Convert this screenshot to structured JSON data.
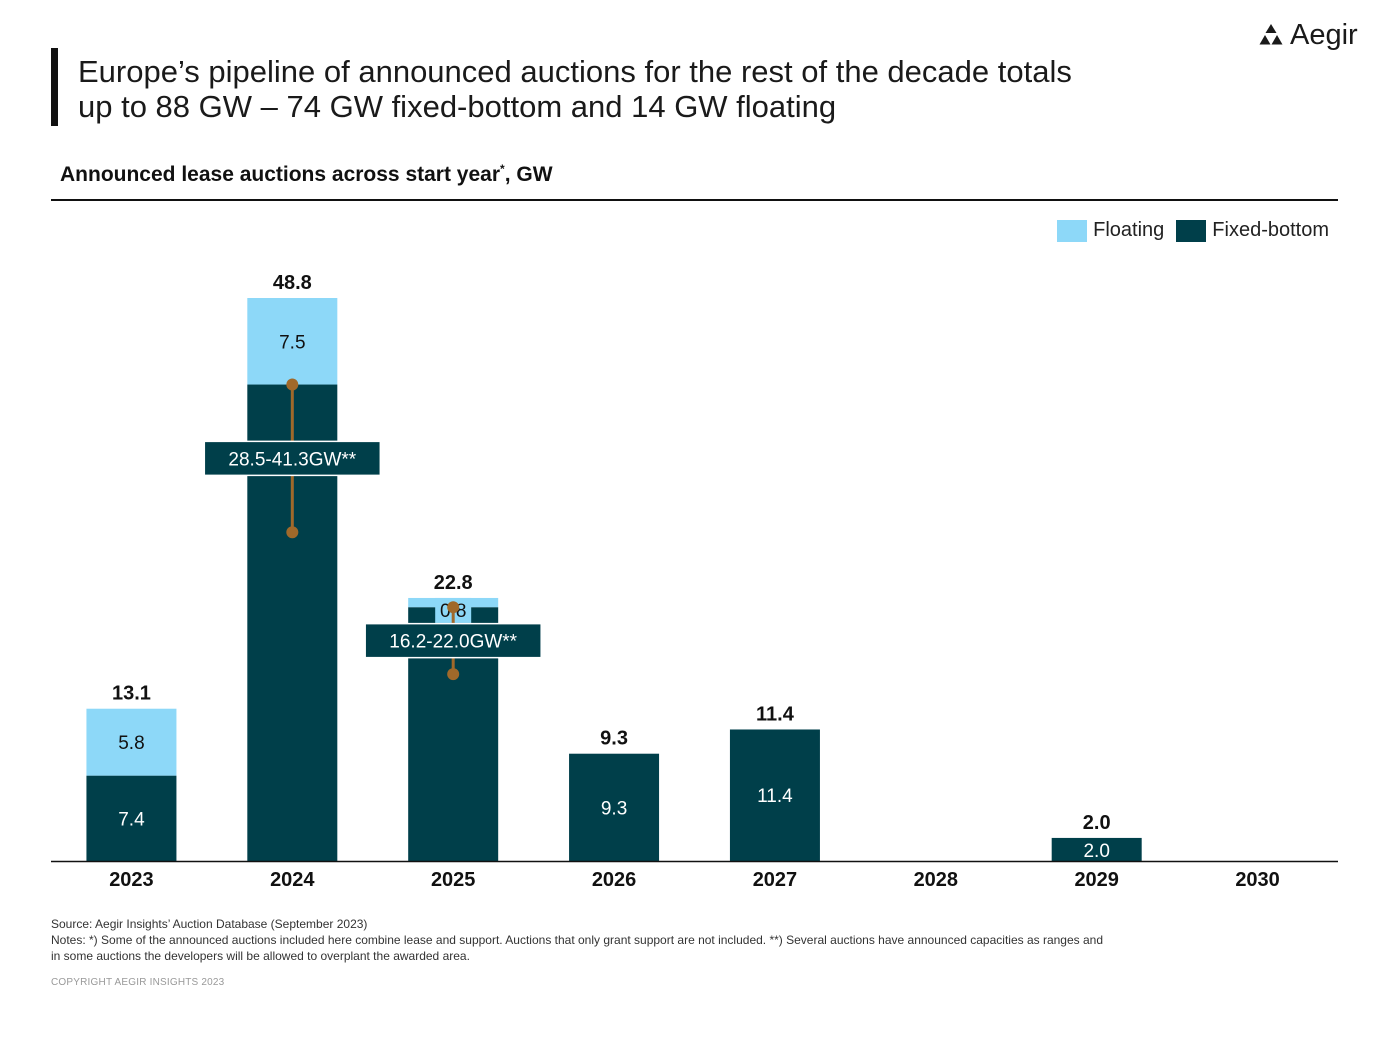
{
  "header": {
    "title_line1": "Europe’s pipeline of announced auctions for the rest of the decade totals",
    "title_line2": "up to 88 GW – 74 GW fixed-bottom and 14 GW floating",
    "logo_text": "Aegir"
  },
  "subtitle": {
    "text": "Announced lease auctions across start year",
    "marker": "*",
    "suffix": ", GW"
  },
  "legend": {
    "floating": "Floating",
    "fixed": "Fixed-bottom"
  },
  "colors": {
    "floating": "#8dd8f8",
    "fixed": "#003f4a",
    "range": "#a0692a",
    "text_dark": "#111111"
  },
  "chart_data": {
    "type": "bar",
    "stacked": true,
    "title": "Announced lease auctions across start year*, GW",
    "xlabel": "",
    "ylabel": "GW",
    "ylim": [
      0,
      48.8
    ],
    "categories": [
      "2023",
      "2024",
      "2025",
      "2026",
      "2027",
      "2028",
      "2029",
      "2030"
    ],
    "series": [
      {
        "name": "Fixed-bottom",
        "values": [
          7.4,
          41.3,
          22.0,
          9.3,
          11.4,
          0,
          2.0,
          0
        ],
        "labels": [
          "7.4",
          "",
          "",
          "9.3",
          "11.4",
          "",
          "2.0",
          ""
        ]
      },
      {
        "name": "Floating",
        "values": [
          5.8,
          7.5,
          0.8,
          0,
          0,
          0,
          0,
          0
        ],
        "labels": [
          "5.8",
          "7.5",
          "0.8",
          "",
          "",
          "",
          "",
          ""
        ]
      }
    ],
    "totals": [
      "13.1",
      "48.8",
      "22.8",
      "9.3",
      "11.4",
      "",
      "2.0",
      ""
    ],
    "ranges": [
      {
        "category": "2024",
        "low": 28.5,
        "high": 41.3,
        "label": "28.5-41.3GW**"
      },
      {
        "category": "2025",
        "low": 16.2,
        "high": 22.0,
        "label": "16.2-22.0GW**"
      }
    ]
  },
  "footer": {
    "source": "Source: Aegir Insights’ Auction Database (September 2023)",
    "notes_line1": "Notes: *) Some of the announced auctions included here combine lease and support. Auctions that only grant support are not included. **) Several auctions have announced capacities as ranges and",
    "notes_line2": "in some auctions the developers will be allowed to overplant the awarded area.",
    "copyright": "COPYRIGHT AEGIR INSIGHTS 2023"
  }
}
